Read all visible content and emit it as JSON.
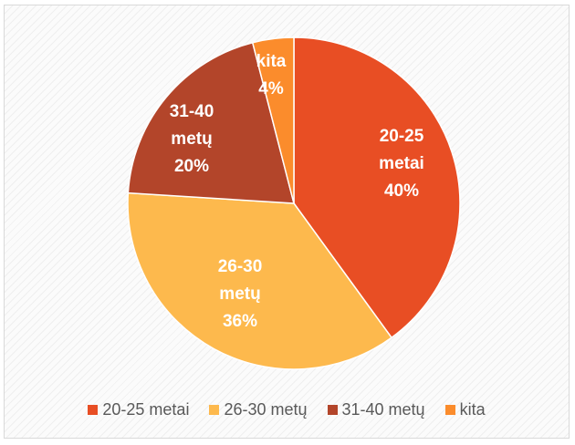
{
  "chart_data": {
    "type": "pie",
    "slices": [
      {
        "label_lines": [
          "20-25",
          "metai",
          "40%"
        ],
        "legend": "20-25 metai",
        "value": 40,
        "color": "#e84e24"
      },
      {
        "label_lines": [
          "26-30",
          "metų",
          "36%"
        ],
        "legend": "26-30 metų",
        "value": 36,
        "color": "#fdb94d"
      },
      {
        "label_lines": [
          "31-40",
          "metų",
          "20%"
        ],
        "legend": "31-40 metų",
        "value": 20,
        "color": "#b3452a"
      },
      {
        "label_lines": [
          "kita",
          "4%"
        ],
        "legend": "kita",
        "value": 4,
        "color": "#fb8c2c"
      }
    ],
    "legend_position": "bottom"
  }
}
